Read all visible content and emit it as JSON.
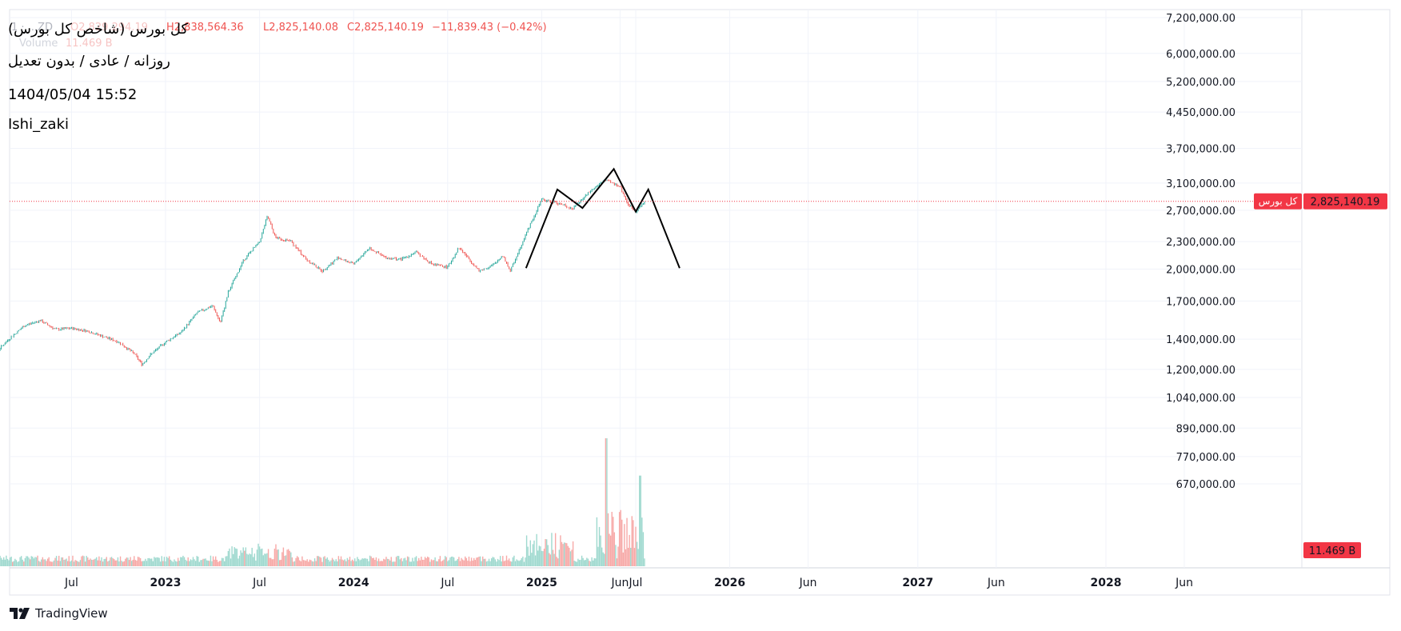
{
  "overlay": {
    "title": "کل بورس (شاخص کل بورس)",
    "subtitle": "روزانه / عادی / بدون تعدیل",
    "datetime": "1404/05/04 15:52",
    "author": "Ishi_zaki"
  },
  "legend": {
    "symbol": "1 · ...ZD",
    "open": "O2,829,294.19",
    "high": "H2,838,564.36",
    "low": "L2,825,140.08",
    "close": "C2,825,140.19",
    "change": "−11,839.43 (−0.42%)",
    "volume_label": "Volume",
    "volume_value": "11.469 B"
  },
  "branding": "TradingView",
  "colors": {
    "up": "#26a69a",
    "down": "#ef5350",
    "vol_up": "#9fd9cf",
    "vol_down": "#f7a9a7",
    "price_line": "#f23645",
    "pattern": "#000000"
  },
  "chart_data": {
    "type": "line",
    "scale": "log",
    "price_ticks": [
      "7,200,000.00",
      "6,000,000.00",
      "5,200,000.00",
      "4,450,000.00",
      "3,700,000.00",
      "3,100,000.00",
      "2,700,000.00",
      "2,300,000.00",
      "2,000,000.00",
      "1,700,000.00",
      "1,400,000.00",
      "1,200,000.00",
      "1,040,000.00",
      "890,000.00",
      "770,000.00",
      "670,000.00"
    ],
    "time_ticks": [
      {
        "label": "Jul",
        "month": 6,
        "bold": false
      },
      {
        "label": "2023",
        "month": 12,
        "bold": true
      },
      {
        "label": "Jul",
        "month": 18,
        "bold": false
      },
      {
        "label": "2024",
        "month": 24,
        "bold": true
      },
      {
        "label": "Jul",
        "month": 30,
        "bold": false
      },
      {
        "label": "2025",
        "month": 36,
        "bold": true
      },
      {
        "label": "Jun",
        "month": 41,
        "bold": false
      },
      {
        "label": "Jul",
        "month": 42,
        "bold": false
      },
      {
        "label": "2026",
        "month": 48,
        "bold": true
      },
      {
        "label": "Jun",
        "month": 53,
        "bold": false
      },
      {
        "label": "2027",
        "month": 60,
        "bold": true
      },
      {
        "label": "Jun",
        "month": 65,
        "bold": false
      },
      {
        "label": "2028",
        "month": 72,
        "bold": true
      },
      {
        "label": "Jun",
        "month": 77,
        "bold": false
      }
    ],
    "current_price": 2825140.19,
    "current_price_label": "2,825,140.19",
    "current_price_tag": "کل بورس",
    "volume_badge": "11.469 B",
    "price_series": [
      [
        0.0,
        1250000
      ],
      [
        1.0,
        1290000
      ],
      [
        2.0,
        1400000
      ],
      [
        3.0,
        1500000
      ],
      [
        4.0,
        1540000
      ],
      [
        5.0,
        1470000
      ],
      [
        6.0,
        1480000
      ],
      [
        7.0,
        1460000
      ],
      [
        8.0,
        1420000
      ],
      [
        9.0,
        1380000
      ],
      [
        10.0,
        1300000
      ],
      [
        10.5,
        1230000
      ],
      [
        11.0,
        1290000
      ],
      [
        12.0,
        1380000
      ],
      [
        13.0,
        1450000
      ],
      [
        14.0,
        1600000
      ],
      [
        15.0,
        1660000
      ],
      [
        15.5,
        1520000
      ],
      [
        16.0,
        1780000
      ],
      [
        17.0,
        2100000
      ],
      [
        18.0,
        2300000
      ],
      [
        18.5,
        2620000
      ],
      [
        19.0,
        2350000
      ],
      [
        20.0,
        2300000
      ],
      [
        21.0,
        2100000
      ],
      [
        22.0,
        1980000
      ],
      [
        23.0,
        2120000
      ],
      [
        24.0,
        2050000
      ],
      [
        25.0,
        2230000
      ],
      [
        26.0,
        2120000
      ],
      [
        27.0,
        2100000
      ],
      [
        28.0,
        2180000
      ],
      [
        29.0,
        2050000
      ],
      [
        30.0,
        2020000
      ],
      [
        30.7,
        2230000
      ],
      [
        31.0,
        2180000
      ],
      [
        32.0,
        1980000
      ],
      [
        33.0,
        2050000
      ],
      [
        33.5,
        2150000
      ],
      [
        34.0,
        1980000
      ],
      [
        35.0,
        2400000
      ],
      [
        36.0,
        2850000
      ],
      [
        37.0,
        2800000
      ],
      [
        38.0,
        2720000
      ],
      [
        39.0,
        2950000
      ],
      [
        40.0,
        3150000
      ],
      [
        41.0,
        3050000
      ],
      [
        41.5,
        2780000
      ],
      [
        42.0,
        2690000
      ],
      [
        42.6,
        2820000
      ]
    ],
    "pattern_points": [
      [
        35.0,
        2010000
      ],
      [
        37.0,
        3000000
      ],
      [
        38.6,
        2730000
      ],
      [
        40.6,
        3330000
      ],
      [
        42.0,
        2680000
      ],
      [
        42.8,
        3000000
      ],
      [
        44.8,
        2010000
      ]
    ],
    "volume_max_billion": 120
  }
}
